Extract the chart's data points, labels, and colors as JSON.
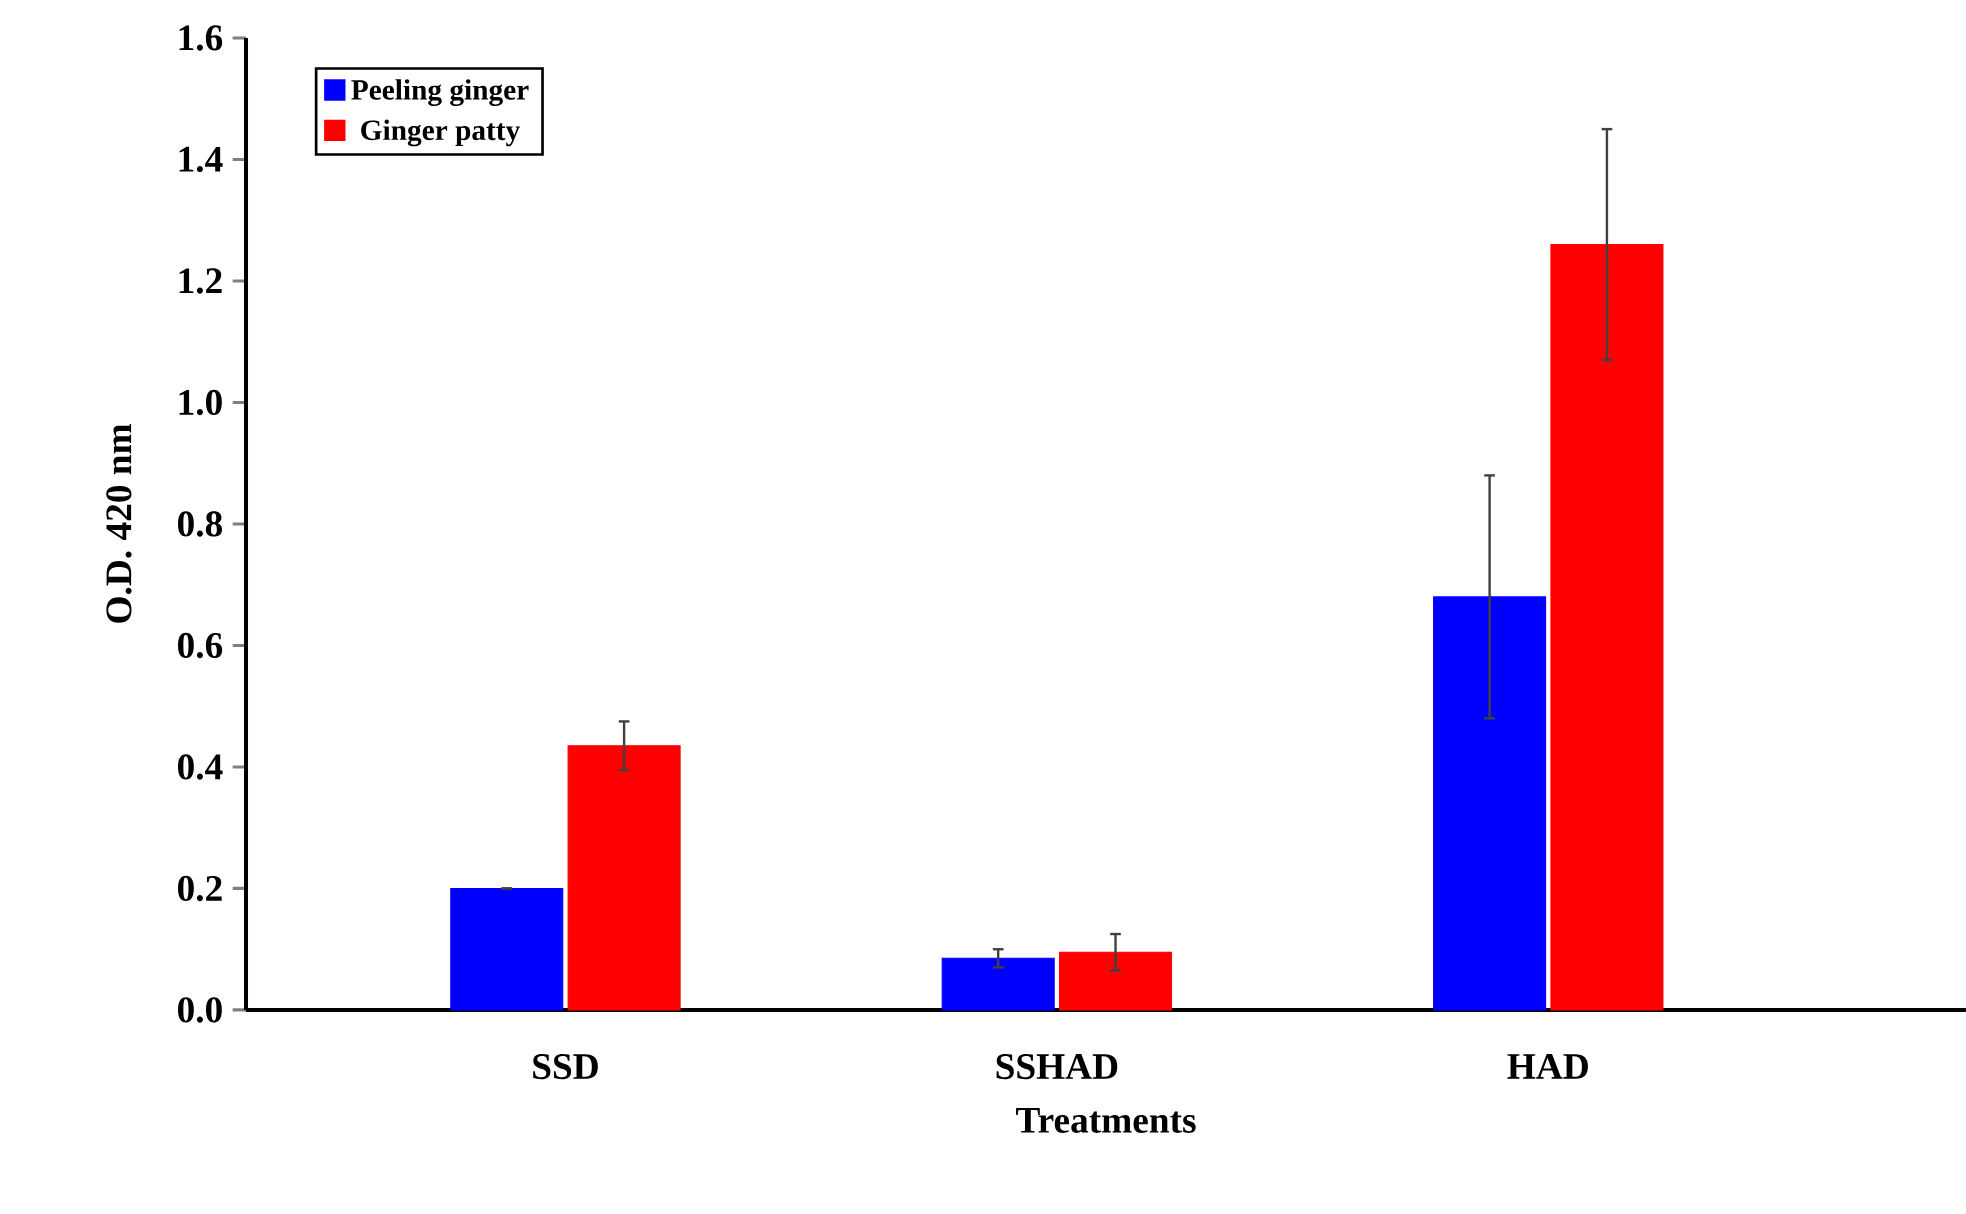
{
  "chart_data": {
    "type": "bar",
    "xlabel": "Treatments",
    "ylabel": "O.D. 420 nm",
    "categories": [
      "SSD",
      "SSHAD",
      "HAD"
    ],
    "series": [
      {
        "name": "Peeling ginger",
        "color": "#0000ff",
        "values": [
          0.2,
          0.085,
          0.68
        ],
        "errors": [
          null,
          0.015,
          0.2
        ]
      },
      {
        "name": "Ginger patty",
        "color": "#ff0000",
        "values": [
          0.435,
          0.095,
          1.26
        ],
        "errors": [
          0.04,
          0.03,
          0.19
        ]
      }
    ],
    "ylim": [
      0,
      1.6
    ],
    "yticks": [
      {
        "value": 0,
        "label": "0.0"
      },
      {
        "value": 0.2,
        "label": "0.2"
      },
      {
        "value": 0.4,
        "label": "0.4"
      },
      {
        "value": 0.6,
        "label": "0.6"
      },
      {
        "value": 0.8,
        "label": "0.8"
      },
      {
        "value": 1.0,
        "label": "1.0"
      },
      {
        "value": 1.2,
        "label": "1.2"
      },
      {
        "value": 1.4,
        "label": "1.4"
      },
      {
        "value": 1.6,
        "label": "1.6"
      }
    ],
    "grid": false,
    "legend": "top left"
  }
}
